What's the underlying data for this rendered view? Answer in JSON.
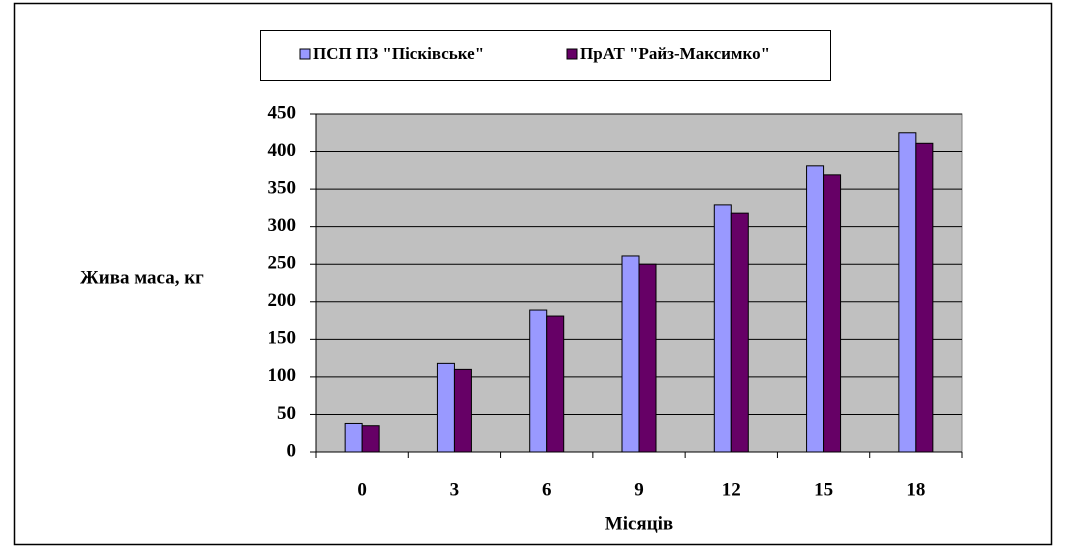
{
  "chart_data": {
    "type": "bar",
    "ylabel": "Жива маса, кг",
    "xlabel": "Місяців",
    "categories": [
      "0",
      "3",
      "6",
      "9",
      "12",
      "15",
      "18"
    ],
    "series": [
      {
        "name": "ПСП ПЗ \"Пісківське\"",
        "color": "#9999ff",
        "values": [
          38,
          118,
          189,
          261,
          329,
          381,
          425
        ]
      },
      {
        "name": "ПрАТ \"Райз-Максимко\"",
        "color": "#660066",
        "values": [
          35,
          110,
          181,
          250,
          318,
          369,
          411
        ]
      }
    ],
    "ylim": [
      0,
      450
    ],
    "yticks": [
      0,
      50,
      100,
      150,
      200,
      250,
      300,
      350,
      400,
      450
    ],
    "grid": true,
    "legend": "top",
    "background": "#c0c0c0"
  }
}
